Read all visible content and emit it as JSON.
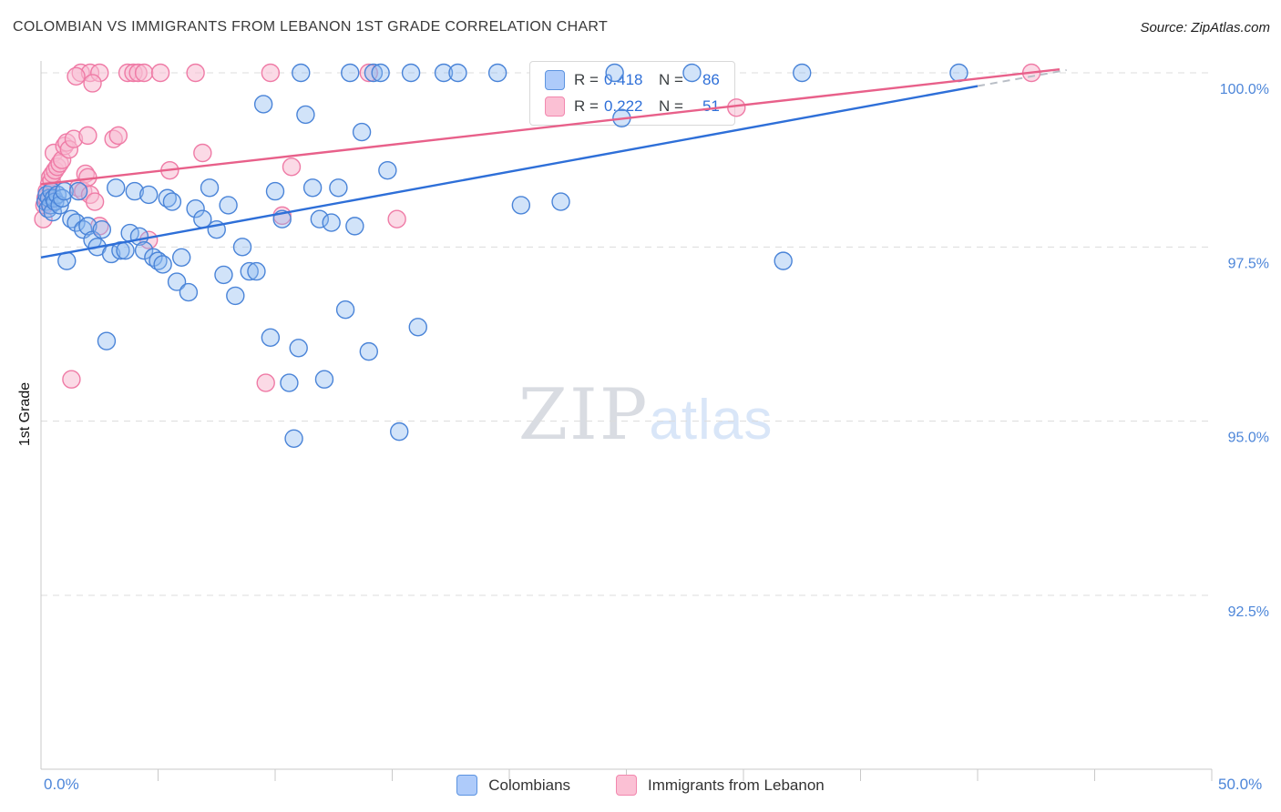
{
  "header": {
    "title": "COLOMBIAN VS IMMIGRANTS FROM LEBANON 1ST GRADE CORRELATION CHART",
    "source": "Source: ZipAtlas.com"
  },
  "watermark": {
    "zip": "ZIP",
    "atlas": "atlas"
  },
  "axes": {
    "y_label": "1st Grade",
    "x_min_label": "0.0%",
    "x_max_label": "50.0%",
    "y_tick_labels": [
      "100.0%",
      "97.5%",
      "95.0%",
      "92.5%"
    ]
  },
  "legend_box": {
    "r_label": "R =",
    "n_label": "N ="
  },
  "colors": {
    "blue_stroke": "#4a84d8",
    "blue_fill": "#8bb8f0",
    "pink_stroke": "#ef7ba6",
    "pink_fill": "#f8bcd2",
    "blue_trend": "#2e6fd8",
    "pink_trend": "#e8608a",
    "grid": "#dcdcdc",
    "axis": "#c9c9c9",
    "tick_label": "#4d86d9"
  },
  "chart_data": {
    "type": "scatter",
    "title": "COLOMBIAN VS IMMIGRANTS FROM LEBANON 1ST GRADE CORRELATION CHART",
    "xlabel": "",
    "ylabel": "1st Grade",
    "xlim": [
      0,
      50
    ],
    "ylim": [
      90,
      100.3
    ],
    "y_gridlines": [
      100.0,
      97.5,
      95.0,
      92.5
    ],
    "x_ticks_every": 5,
    "legend_position": "bottom-center",
    "series": [
      {
        "name": "Immigrants from Lebanon",
        "r": "0.222",
        "n": "51",
        "trend": {
          "x1": 0,
          "y1": 98.4,
          "x2": 43.5,
          "y2": 100.05
        },
        "points": [
          [
            1.7,
            100.0
          ],
          [
            2.1,
            100.0
          ],
          [
            2.5,
            100.0
          ],
          [
            3.7,
            100.0
          ],
          [
            3.95,
            100.0
          ],
          [
            4.15,
            100.0
          ],
          [
            4.4,
            100.0
          ],
          [
            5.1,
            100.0
          ],
          [
            6.6,
            100.0
          ],
          [
            9.8,
            100.0
          ],
          [
            14.0,
            100.0
          ],
          [
            42.3,
            100.0
          ],
          [
            1.5,
            99.95
          ],
          [
            2.2,
            99.85
          ],
          [
            0.1,
            97.9
          ],
          [
            0.15,
            98.1
          ],
          [
            0.2,
            98.2
          ],
          [
            0.25,
            98.3
          ],
          [
            0.3,
            98.15
          ],
          [
            0.35,
            98.4
          ],
          [
            0.4,
            98.5
          ],
          [
            0.45,
            98.45
          ],
          [
            0.5,
            98.55
          ],
          [
            0.55,
            98.85
          ],
          [
            0.6,
            98.6
          ],
          [
            0.7,
            98.65
          ],
          [
            0.8,
            98.7
          ],
          [
            0.9,
            98.75
          ],
          [
            1.0,
            98.95
          ],
          [
            1.1,
            99.0
          ],
          [
            1.2,
            98.9
          ],
          [
            1.4,
            99.05
          ],
          [
            1.6,
            98.35
          ],
          [
            1.8,
            98.3
          ],
          [
            2.0,
            99.1
          ],
          [
            2.1,
            98.25
          ],
          [
            2.3,
            98.15
          ],
          [
            2.5,
            97.8
          ],
          [
            1.3,
            95.6
          ],
          [
            1.9,
            98.55
          ],
          [
            2.0,
            98.5
          ],
          [
            3.1,
            99.05
          ],
          [
            3.3,
            99.1
          ],
          [
            4.6,
            97.6
          ],
          [
            5.5,
            98.6
          ],
          [
            6.9,
            98.85
          ],
          [
            9.6,
            95.55
          ],
          [
            10.3,
            97.95
          ],
          [
            10.7,
            98.65
          ],
          [
            15.2,
            97.9
          ],
          [
            29.7,
            99.5
          ]
        ]
      },
      {
        "name": "Colombians",
        "r": "0.418",
        "n": "86",
        "trend": {
          "x1": 0,
          "y1": 97.35,
          "x2": 40,
          "y2": 99.81,
          "ext_x2": 43.8,
          "ext_y2": 100.04
        },
        "points": [
          [
            0.2,
            98.15
          ],
          [
            0.25,
            98.25
          ],
          [
            0.3,
            98.05
          ],
          [
            0.35,
            98.2
          ],
          [
            0.4,
            98.1
          ],
          [
            0.45,
            98.3
          ],
          [
            0.5,
            98.0
          ],
          [
            0.55,
            98.2
          ],
          [
            0.6,
            98.15
          ],
          [
            0.7,
            98.25
          ],
          [
            0.8,
            98.1
          ],
          [
            0.9,
            98.2
          ],
          [
            1.0,
            98.3
          ],
          [
            1.1,
            97.3
          ],
          [
            1.3,
            97.9
          ],
          [
            1.5,
            97.85
          ],
          [
            1.6,
            98.3
          ],
          [
            1.8,
            97.75
          ],
          [
            2.0,
            97.8
          ],
          [
            2.2,
            97.6
          ],
          [
            2.4,
            97.5
          ],
          [
            2.6,
            97.75
          ],
          [
            2.8,
            96.15
          ],
          [
            3.0,
            97.4
          ],
          [
            3.2,
            98.35
          ],
          [
            3.4,
            97.45
          ],
          [
            3.6,
            97.45
          ],
          [
            3.8,
            97.7
          ],
          [
            4.0,
            98.3
          ],
          [
            4.2,
            97.65
          ],
          [
            4.4,
            97.45
          ],
          [
            4.6,
            98.25
          ],
          [
            4.8,
            97.35
          ],
          [
            5.0,
            97.3
          ],
          [
            5.2,
            97.25
          ],
          [
            5.4,
            98.2
          ],
          [
            5.6,
            98.15
          ],
          [
            5.8,
            97.0
          ],
          [
            6.0,
            97.35
          ],
          [
            6.3,
            96.85
          ],
          [
            6.6,
            98.05
          ],
          [
            6.9,
            97.9
          ],
          [
            7.2,
            98.35
          ],
          [
            7.5,
            97.75
          ],
          [
            7.8,
            97.1
          ],
          [
            8.0,
            98.1
          ],
          [
            8.3,
            96.8
          ],
          [
            8.6,
            97.5
          ],
          [
            8.9,
            97.15
          ],
          [
            9.2,
            97.15
          ],
          [
            9.5,
            99.55
          ],
          [
            9.8,
            96.2
          ],
          [
            10.0,
            98.3
          ],
          [
            10.3,
            97.9
          ],
          [
            10.6,
            95.55
          ],
          [
            10.8,
            94.75
          ],
          [
            11.0,
            96.05
          ],
          [
            11.1,
            100.0
          ],
          [
            11.3,
            99.4
          ],
          [
            11.6,
            98.35
          ],
          [
            11.9,
            97.9
          ],
          [
            12.1,
            95.6
          ],
          [
            12.4,
            97.85
          ],
          [
            12.7,
            98.35
          ],
          [
            13.0,
            96.6
          ],
          [
            13.2,
            100.0
          ],
          [
            13.4,
            97.8
          ],
          [
            13.7,
            99.15
          ],
          [
            14.0,
            96.0
          ],
          [
            14.2,
            100.0
          ],
          [
            14.5,
            100.0
          ],
          [
            14.8,
            98.6
          ],
          [
            15.3,
            94.85
          ],
          [
            15.8,
            100.0
          ],
          [
            16.1,
            96.35
          ],
          [
            17.2,
            100.0
          ],
          [
            17.8,
            100.0
          ],
          [
            19.5,
            100.0
          ],
          [
            20.5,
            98.1
          ],
          [
            22.2,
            98.15
          ],
          [
            24.5,
            100.0
          ],
          [
            24.8,
            99.35
          ],
          [
            27.8,
            100.0
          ],
          [
            31.7,
            97.3
          ],
          [
            32.5,
            100.0
          ],
          [
            39.2,
            100.0
          ]
        ]
      }
    ]
  }
}
